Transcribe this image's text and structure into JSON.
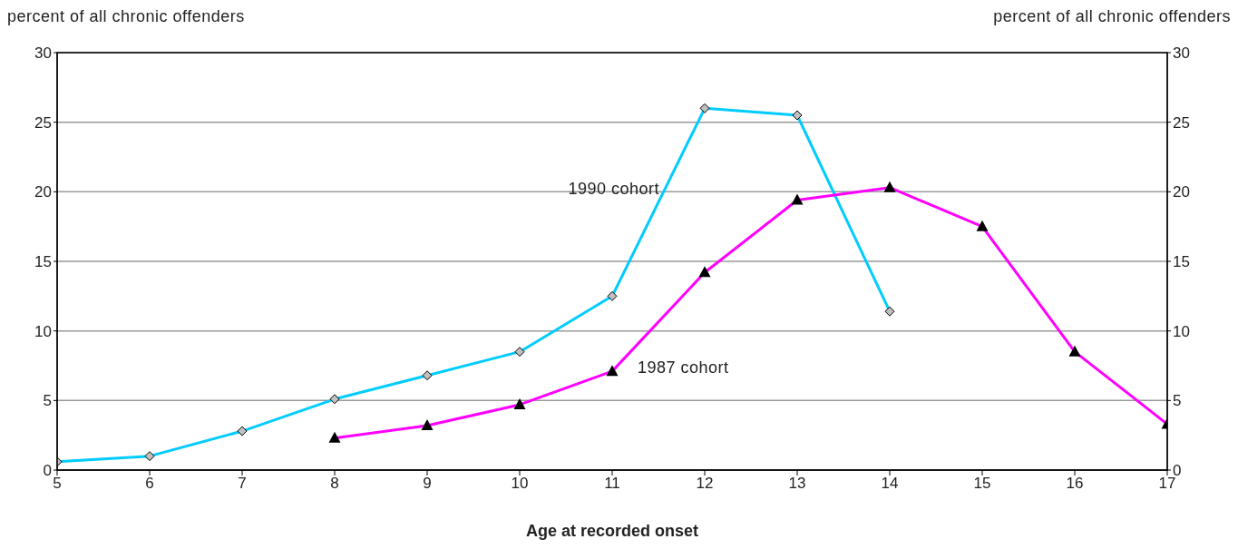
{
  "chart_data": {
    "type": "line",
    "xlabel": "Age at recorded onset",
    "ylabel": "percent of all chronic offenders",
    "y2label": "percent of all chronic offenders",
    "x": [
      5,
      6,
      7,
      8,
      9,
      10,
      11,
      12,
      13,
      14,
      15,
      16,
      17
    ],
    "series": [
      {
        "name": "1990 cohort",
        "color": "#00ccff",
        "marker": "diamond",
        "values": [
          0.6,
          1.0,
          2.8,
          5.1,
          6.8,
          8.5,
          12.5,
          26.0,
          25.5,
          11.4,
          null,
          null,
          null
        ]
      },
      {
        "name": "1987 cohort",
        "color": "#ff00ff",
        "marker": "triangle",
        "values": [
          null,
          null,
          null,
          2.3,
          3.2,
          4.7,
          7.1,
          14.2,
          19.4,
          20.3,
          17.5,
          8.5,
          3.3
        ]
      }
    ],
    "xlim": [
      5,
      17
    ],
    "xticks": [
      5,
      6,
      7,
      8,
      9,
      10,
      11,
      12,
      13,
      14,
      15,
      16,
      17
    ],
    "ylim": [
      0,
      30
    ],
    "yticks": [
      0,
      5,
      10,
      15,
      20,
      25,
      30
    ],
    "y2lim": [
      0,
      30
    ],
    "y2ticks": [
      0,
      5,
      10,
      15,
      20,
      25,
      30
    ],
    "grid": "y",
    "legend": false
  }
}
